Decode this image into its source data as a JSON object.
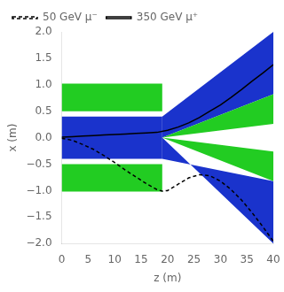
{
  "chart_data": {
    "type": "line",
    "xlabel": "z (m)",
    "ylabel": "x (m)",
    "xlim": [
      0,
      40
    ],
    "ylim": [
      -2,
      2
    ],
    "xticks": [
      0,
      5,
      10,
      15,
      20,
      25,
      30,
      35,
      40
    ],
    "yticks": [
      {
        "value": -2,
        "label": "−2.0"
      },
      {
        "value": -1.5,
        "label": "−1.5"
      },
      {
        "value": -1,
        "label": "−1.0"
      },
      {
        "value": -0.5,
        "label": "−0.5"
      },
      {
        "value": 0,
        "label": "0.0"
      },
      {
        "value": 0.5,
        "label": "0.5"
      },
      {
        "value": 1,
        "label": "1.0"
      },
      {
        "value": 1.5,
        "label": "1.5"
      },
      {
        "value": 2,
        "label": "2.0"
      }
    ],
    "grid": false,
    "legend": "upper left",
    "series": [
      {
        "type": "polygon",
        "color": "#1a33cc",
        "points": [
          [
            0,
            -0.4
          ],
          [
            19,
            -0.4
          ],
          [
            19,
            0.4
          ],
          [
            0,
            0.4
          ]
        ]
      },
      {
        "type": "polygon",
        "color": "#22cc22",
        "points": [
          [
            0,
            0.5
          ],
          [
            19,
            0.5
          ],
          [
            19,
            1.02
          ],
          [
            0,
            1.02
          ]
        ]
      },
      {
        "type": "polygon",
        "color": "#22cc22",
        "points": [
          [
            0,
            -1.02
          ],
          [
            19,
            -1.02
          ],
          [
            19,
            -0.5
          ],
          [
            0,
            -0.5
          ]
        ]
      },
      {
        "type": "polygon",
        "color": "#1a33cc",
        "points": [
          [
            19,
            0.4
          ],
          [
            40,
            2.0
          ],
          [
            40,
            0.82
          ],
          [
            19,
            0.0
          ]
        ]
      },
      {
        "type": "polygon",
        "color": "#1a33cc",
        "points": [
          [
            19,
            -0.4
          ],
          [
            40,
            -0.82
          ],
          [
            40,
            -2.0
          ],
          [
            19,
            0.0
          ]
        ]
      },
      {
        "type": "polygon",
        "color": "#22cc22",
        "points": [
          [
            19,
            0.0
          ],
          [
            40,
            0.82
          ],
          [
            40,
            0.26
          ],
          [
            19,
            0.0
          ]
        ]
      },
      {
        "type": "polygon",
        "color": "#22cc22",
        "points": [
          [
            19,
            0.0
          ],
          [
            40,
            -0.26
          ],
          [
            40,
            -0.82
          ],
          [
            19,
            0.0
          ]
        ]
      },
      {
        "type": "line",
        "name": "350 GeV μ⁺",
        "color": "#000000",
        "line_style": "solid",
        "x": [
          0.0,
          2.0,
          4.0,
          6.0,
          8.0,
          10.0,
          12.0,
          14.0,
          16.0,
          18.0,
          20.0,
          22.0,
          24.0,
          26.0,
          28.0,
          30.0,
          32.0,
          34.0,
          36.0,
          38.0,
          40.0
        ],
        "values": [
          0.01,
          0.02,
          0.03,
          0.04,
          0.05,
          0.06,
          0.07,
          0.08,
          0.09,
          0.1,
          0.14,
          0.2,
          0.28,
          0.38,
          0.5,
          0.62,
          0.76,
          0.91,
          1.07,
          1.22,
          1.38
        ]
      },
      {
        "type": "line",
        "name": "50 GeV μ⁻",
        "color": "#000000",
        "line_style": "dashed",
        "x": [
          0.0,
          2.0,
          4.0,
          6.0,
          8.0,
          10.0,
          12.0,
          14.0,
          16.0,
          18.0,
          19.0,
          20.0,
          22.0,
          24.0,
          26.0,
          28.0,
          30.0,
          32.0,
          34.0,
          36.0,
          38.0,
          40.0
        ],
        "values": [
          -0.01,
          -0.05,
          -0.13,
          -0.22,
          -0.34,
          -0.47,
          -0.61,
          -0.74,
          -0.87,
          -0.98,
          -1.01,
          -1.0,
          -0.88,
          -0.76,
          -0.7,
          -0.72,
          -0.82,
          -0.98,
          -1.18,
          -1.42,
          -1.68,
          -1.96
        ]
      }
    ]
  }
}
